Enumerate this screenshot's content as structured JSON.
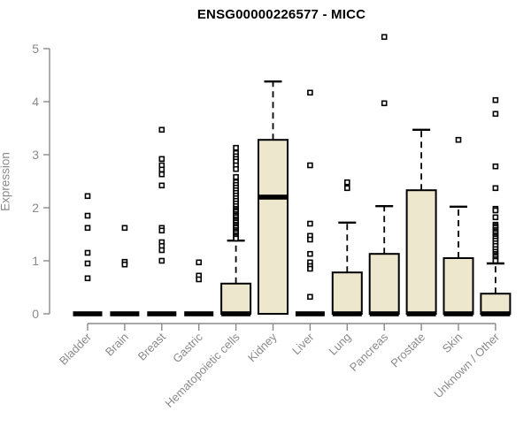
{
  "chart_data": {
    "type": "boxplot",
    "title": "ENSG00000226577 - MICC",
    "xlabel": "",
    "ylabel": "Expression",
    "ylim": [
      0,
      5.3
    ],
    "yticks": [
      0,
      1,
      2,
      3,
      4,
      5
    ],
    "grid": false,
    "legend": "none",
    "colors": {
      "box_fill": "#ece7cd",
      "box_border": "#000000",
      "median": "#000000",
      "axis": "#8a8a8a",
      "tick_label": "#8a8a8a",
      "title": "#000000",
      "outlier": "#000000",
      "background": "#ffffff"
    },
    "categories": [
      "Bladder",
      "Brain",
      "Breast",
      "Gastric",
      "Hematopoietic cells",
      "Kidney",
      "Liver",
      "Lung",
      "Pancreas",
      "Prostate",
      "Skin",
      "Unknown / Other"
    ],
    "boxes": [
      {
        "category": "Bladder",
        "q1": 0,
        "median": 0,
        "q3": 0,
        "whisker_low": 0,
        "whisker_high": 0,
        "outliers": [
          2.22,
          1.85,
          1.62,
          1.15,
          0.95,
          0.67
        ]
      },
      {
        "category": "Brain",
        "q1": 0,
        "median": 0,
        "q3": 0,
        "whisker_low": 0,
        "whisker_high": 0,
        "outliers": [
          1.62,
          0.98,
          0.93
        ]
      },
      {
        "category": "Breast",
        "q1": 0,
        "median": 0,
        "q3": 0,
        "whisker_low": 0,
        "whisker_high": 0,
        "outliers": [
          3.47,
          2.92,
          2.8,
          2.72,
          2.63,
          2.42,
          1.62,
          1.57,
          1.35,
          1.28,
          1.2,
          1.0
        ]
      },
      {
        "category": "Gastric",
        "q1": 0,
        "median": 0,
        "q3": 0,
        "whisker_low": 0,
        "whisker_high": 0,
        "outliers": [
          0.97,
          0.72,
          0.65
        ]
      },
      {
        "category": "Hematopoietic cells",
        "q1": 0,
        "median": 0,
        "q3": 0.57,
        "whisker_low": 0,
        "whisker_high": 1.38,
        "outliers": [
          3.13,
          3.03,
          2.97,
          2.92,
          2.87,
          2.8,
          2.73,
          2.58,
          2.48,
          2.43,
          2.38,
          2.33,
          2.28,
          2.23,
          2.18,
          2.13,
          2.08,
          2.03,
          1.98,
          1.95,
          1.92,
          1.88,
          1.85,
          1.82,
          1.78,
          1.75,
          1.72,
          1.68,
          1.65,
          1.62,
          1.58,
          1.55,
          1.52,
          1.48,
          1.45,
          1.42
        ]
      },
      {
        "category": "Kidney",
        "q1": 0,
        "median": 2.2,
        "q3": 3.28,
        "whisker_low": 0,
        "whisker_high": 4.38,
        "outliers": []
      },
      {
        "category": "Liver",
        "q1": 0,
        "median": 0,
        "q3": 0,
        "whisker_low": 0,
        "whisker_high": 0,
        "outliers": [
          4.17,
          2.8,
          1.7,
          1.47,
          1.4,
          1.13,
          0.97,
          0.9,
          0.85,
          0.32
        ]
      },
      {
        "category": "Lung",
        "q1": 0,
        "median": 0,
        "q3": 0.78,
        "whisker_low": 0,
        "whisker_high": 1.72,
        "outliers": [
          2.48,
          2.37
        ]
      },
      {
        "category": "Pancreas",
        "q1": 0,
        "median": 0,
        "q3": 1.13,
        "whisker_low": 0,
        "whisker_high": 2.03,
        "outliers": [
          5.22,
          3.97
        ]
      },
      {
        "category": "Prostate",
        "q1": 0,
        "median": 0,
        "q3": 2.33,
        "whisker_low": 0,
        "whisker_high": 3.47,
        "outliers": []
      },
      {
        "category": "Skin",
        "q1": 0,
        "median": 0,
        "q3": 1.05,
        "whisker_low": 0,
        "whisker_high": 2.02,
        "outliers": [
          3.28
        ]
      },
      {
        "category": "Unknown / Other",
        "q1": 0,
        "median": 0,
        "q3": 0.38,
        "whisker_low": 0,
        "whisker_high": 0.95,
        "outliers": [
          4.03,
          3.77,
          2.78,
          2.37,
          1.98,
          1.95,
          1.82,
          1.68,
          1.65,
          1.62,
          1.58,
          1.55,
          1.52,
          1.48,
          1.45,
          1.42,
          1.38,
          1.33,
          1.28,
          1.22,
          1.17,
          1.13,
          1.1,
          1.07,
          1.03,
          1.0
        ]
      }
    ]
  }
}
